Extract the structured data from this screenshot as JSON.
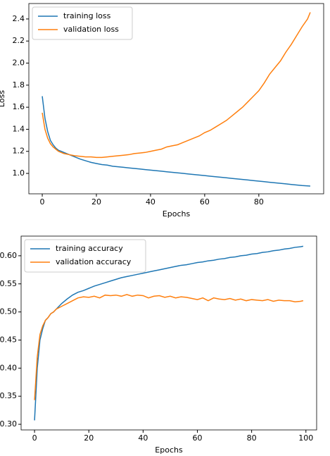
{
  "chart_data": [
    {
      "type": "line",
      "xlabel": "Epochs",
      "ylabel": "Loss",
      "legend": "upper left",
      "grid": false,
      "x": [
        0,
        1,
        2,
        3,
        4,
        5,
        6,
        7,
        8,
        10,
        12,
        14,
        16,
        18,
        20,
        22,
        24,
        26,
        28,
        30,
        32,
        34,
        36,
        38,
        40,
        42,
        44,
        46,
        48,
        50,
        52,
        54,
        56,
        58,
        60,
        62,
        64,
        66,
        68,
        70,
        72,
        74,
        76,
        78,
        80,
        82,
        84,
        86,
        88,
        90,
        92,
        94,
        96,
        98,
        99
      ],
      "series": [
        {
          "name": "training loss",
          "color": "#1f77b4",
          "values": [
            1.7,
            1.5,
            1.38,
            1.3,
            1.26,
            1.23,
            1.21,
            1.2,
            1.19,
            1.17,
            1.15,
            1.13,
            1.115,
            1.1,
            1.09,
            1.08,
            1.075,
            1.065,
            1.06,
            1.055,
            1.05,
            1.045,
            1.04,
            1.035,
            1.03,
            1.025,
            1.02,
            1.015,
            1.01,
            1.005,
            1.0,
            0.995,
            0.99,
            0.985,
            0.98,
            0.975,
            0.97,
            0.965,
            0.96,
            0.955,
            0.95,
            0.945,
            0.94,
            0.935,
            0.93,
            0.925,
            0.92,
            0.915,
            0.91,
            0.905,
            0.9,
            0.895,
            0.89,
            0.887,
            0.885
          ]
        },
        {
          "name": "validation loss",
          "color": "#ff7f0e",
          "values": [
            1.55,
            1.4,
            1.32,
            1.27,
            1.24,
            1.22,
            1.2,
            1.19,
            1.18,
            1.17,
            1.16,
            1.155,
            1.15,
            1.15,
            1.145,
            1.145,
            1.15,
            1.155,
            1.16,
            1.165,
            1.17,
            1.18,
            1.185,
            1.19,
            1.2,
            1.21,
            1.22,
            1.24,
            1.25,
            1.26,
            1.28,
            1.3,
            1.32,
            1.34,
            1.37,
            1.39,
            1.42,
            1.45,
            1.48,
            1.52,
            1.56,
            1.6,
            1.65,
            1.7,
            1.75,
            1.82,
            1.9,
            1.96,
            2.02,
            2.1,
            2.17,
            2.25,
            2.33,
            2.4,
            2.46
          ]
        }
      ],
      "xlim": [
        -4.95,
        103.95
      ],
      "xticks": [
        0,
        20,
        40,
        60,
        80
      ],
      "ylim": [
        0.815,
        2.54
      ],
      "yticks": [
        {
          "value": 1.0,
          "label": "1.0"
        },
        1.2,
        1.4,
        1.6,
        1.8,
        {
          "value": 2.0,
          "label": "2.0"
        },
        2.2,
        2.4
      ]
    },
    {
      "type": "line",
      "xlabel": "Epochs",
      "legend": "upper left",
      "grid": false,
      "x": [
        0,
        1,
        2,
        3,
        4,
        5,
        6,
        7,
        8,
        10,
        12,
        14,
        16,
        18,
        20,
        22,
        24,
        26,
        28,
        30,
        32,
        34,
        36,
        38,
        40,
        42,
        44,
        46,
        48,
        50,
        52,
        54,
        56,
        58,
        60,
        62,
        64,
        66,
        68,
        70,
        72,
        74,
        76,
        78,
        80,
        82,
        84,
        86,
        88,
        90,
        92,
        94,
        96,
        98,
        99
      ],
      "series": [
        {
          "name": "training accuracy",
          "color": "#1f77b4",
          "values": [
            0.307,
            0.4,
            0.45,
            0.47,
            0.485,
            0.49,
            0.497,
            0.5,
            0.505,
            0.515,
            0.523,
            0.53,
            0.535,
            0.538,
            0.542,
            0.546,
            0.549,
            0.552,
            0.555,
            0.558,
            0.561,
            0.563,
            0.565,
            0.567,
            0.569,
            0.571,
            0.573,
            0.575,
            0.577,
            0.579,
            0.581,
            0.583,
            0.584,
            0.586,
            0.588,
            0.589,
            0.591,
            0.592,
            0.594,
            0.595,
            0.597,
            0.598,
            0.6,
            0.601,
            0.603,
            0.604,
            0.606,
            0.607,
            0.609,
            0.61,
            0.612,
            0.613,
            0.615,
            0.616,
            0.617
          ]
        },
        {
          "name": "validation accuracy",
          "color": "#ff7f0e",
          "values": [
            0.343,
            0.42,
            0.46,
            0.475,
            0.485,
            0.49,
            0.497,
            0.5,
            0.505,
            0.51,
            0.515,
            0.52,
            0.525,
            0.527,
            0.526,
            0.528,
            0.525,
            0.53,
            0.529,
            0.53,
            0.528,
            0.531,
            0.528,
            0.53,
            0.529,
            0.525,
            0.528,
            0.529,
            0.526,
            0.528,
            0.525,
            0.527,
            0.526,
            0.524,
            0.522,
            0.525,
            0.52,
            0.525,
            0.523,
            0.522,
            0.524,
            0.521,
            0.523,
            0.52,
            0.522,
            0.521,
            0.52,
            0.522,
            0.519,
            0.521,
            0.52,
            0.52,
            0.518,
            0.519,
            0.52
          ]
        }
      ],
      "xlim": [
        -4.95,
        103.95
      ],
      "xticks": [
        0,
        20,
        40,
        60,
        80,
        100
      ],
      "ylim": [
        0.29,
        0.635
      ],
      "yticks": [
        {
          "value": 0.3,
          "label": "0.30"
        },
        0.35,
        {
          "value": 0.4,
          "label": "0.40"
        },
        0.45,
        {
          "value": 0.5,
          "label": "0.50"
        },
        0.55,
        {
          "value": 0.6,
          "label": "0.60"
        }
      ]
    }
  ]
}
